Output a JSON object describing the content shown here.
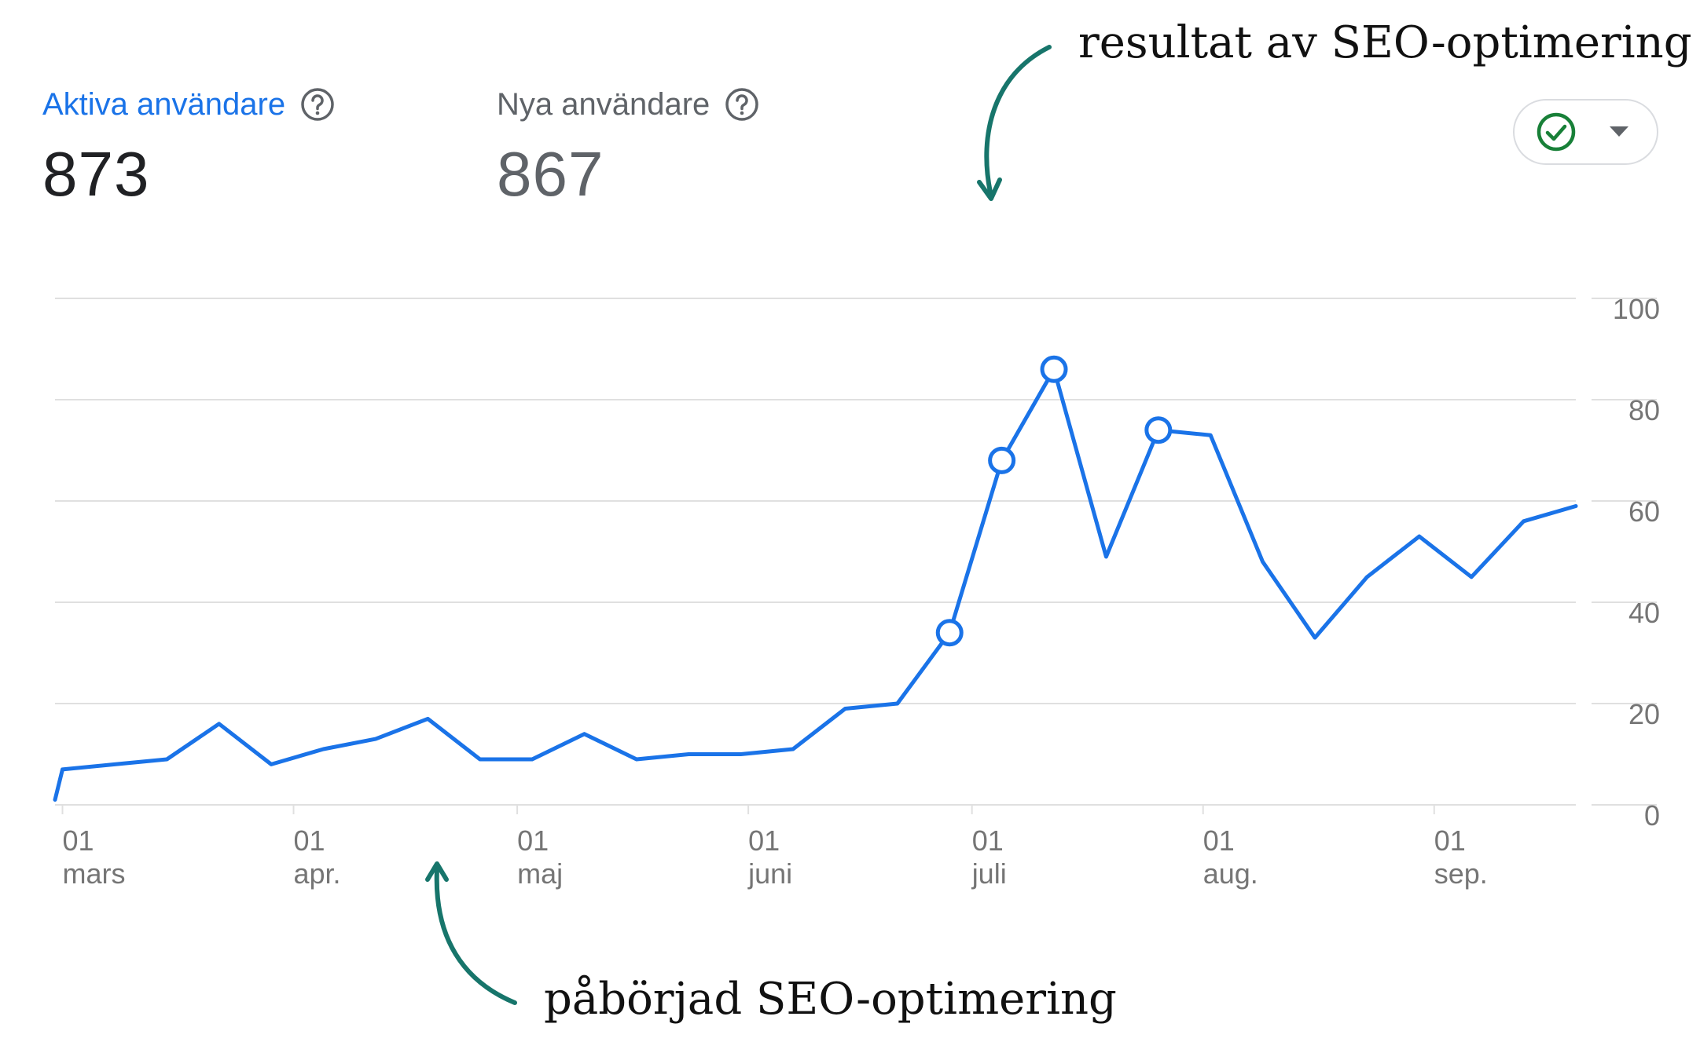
{
  "metrics": {
    "active": {
      "label": "Aktiva användare",
      "value": "873"
    },
    "new": {
      "label": "Nya användare",
      "value": "867"
    }
  },
  "icons": {
    "help": "help-circle-icon",
    "compare": "check-circle-icon",
    "dropdown": "caret-down-icon",
    "annotation_arrow": "curved-arrow-icon"
  },
  "colors": {
    "series": "#1a73e8",
    "grid": "#e0e0e0",
    "axis_text": "#757575",
    "check": "#188038",
    "arrow": "#17756b"
  },
  "annotations": {
    "top": "resultat av SEO-optimering",
    "bottom": "påbörjad SEO-optimering"
  },
  "chart_data": {
    "type": "line",
    "title": "",
    "xlabel": "",
    "ylabel": "",
    "ylim": [
      0,
      100
    ],
    "y_ticks": [
      0,
      20,
      40,
      60,
      80,
      100
    ],
    "y_axis_side": "right",
    "grid": true,
    "x_ticks": [
      {
        "day": "01",
        "month": "mars",
        "date": "03-01"
      },
      {
        "day": "01",
        "month": "apr.",
        "date": "04-01"
      },
      {
        "day": "01",
        "month": "maj",
        "date": "05-01"
      },
      {
        "day": "01",
        "month": "juni",
        "date": "06-01"
      },
      {
        "day": "01",
        "month": "juli",
        "date": "07-01"
      },
      {
        "day": "01",
        "month": "aug.",
        "date": "08-01"
      },
      {
        "day": "01",
        "month": "sep.",
        "date": "09-01"
      }
    ],
    "series": [
      {
        "name": "",
        "points": [
          {
            "x": "02-28",
            "y": 1
          },
          {
            "x": "03-01",
            "y": 7
          },
          {
            "x": "03-08",
            "y": 8
          },
          {
            "x": "03-15",
            "y": 9
          },
          {
            "x": "03-22",
            "y": 16
          },
          {
            "x": "03-29",
            "y": 8
          },
          {
            "x": "04-05",
            "y": 11
          },
          {
            "x": "04-12",
            "y": 13
          },
          {
            "x": "04-19",
            "y": 17
          },
          {
            "x": "04-26",
            "y": 9
          },
          {
            "x": "05-03",
            "y": 9
          },
          {
            "x": "05-10",
            "y": 14
          },
          {
            "x": "05-17",
            "y": 9
          },
          {
            "x": "05-24",
            "y": 10
          },
          {
            "x": "05-31",
            "y": 10
          },
          {
            "x": "06-07",
            "y": 11
          },
          {
            "x": "06-14",
            "y": 19
          },
          {
            "x": "06-21",
            "y": 20
          },
          {
            "x": "06-28",
            "y": 34,
            "highlight": true
          },
          {
            "x": "07-05",
            "y": 68,
            "highlight": true
          },
          {
            "x": "07-12",
            "y": 86,
            "highlight": true
          },
          {
            "x": "07-19",
            "y": 49
          },
          {
            "x": "07-26",
            "y": 74,
            "highlight": true
          },
          {
            "x": "08-02",
            "y": 73
          },
          {
            "x": "08-09",
            "y": 48
          },
          {
            "x": "08-16",
            "y": 33
          },
          {
            "x": "08-23",
            "y": 45
          },
          {
            "x": "08-30",
            "y": 53
          },
          {
            "x": "09-06",
            "y": 45
          },
          {
            "x": "09-13",
            "y": 56
          },
          {
            "x": "09-20",
            "y": 59
          }
        ]
      }
    ]
  }
}
